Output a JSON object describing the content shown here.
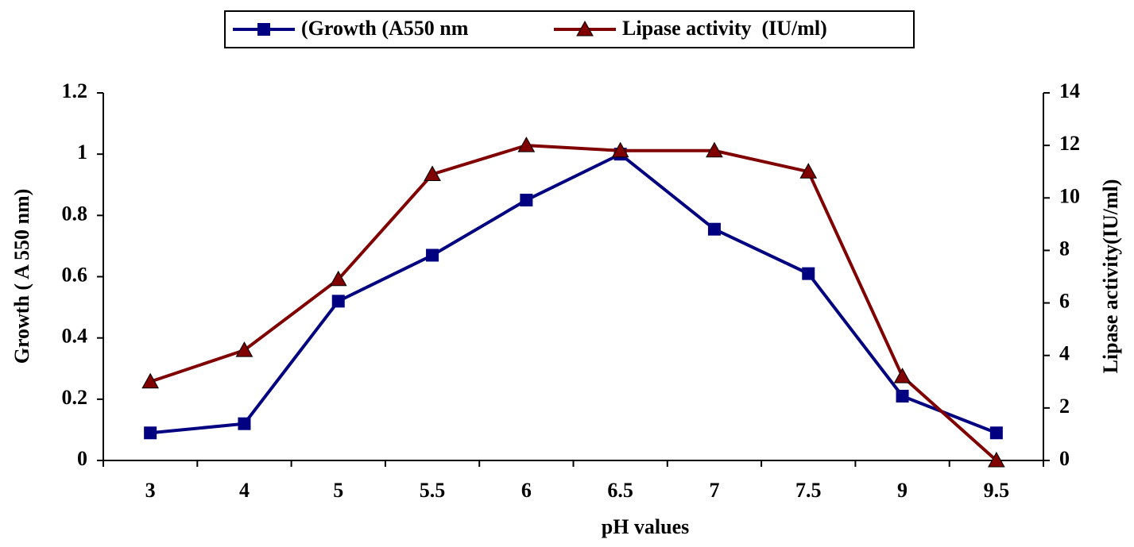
{
  "chart_data": {
    "type": "line",
    "x_label": "pH values",
    "y_label": "Growth ( A 550 nm)",
    "y2_label": "Lipase activity(IU/ml)",
    "categories": [
      "3",
      "4",
      "5",
      "5.5",
      "6",
      "6.5",
      "7",
      "7.5",
      "9",
      "9.5"
    ],
    "series": [
      {
        "name": "(Growth (A550 nm",
        "color": "#000080",
        "marker": "square",
        "values": [
          0.09,
          0.12,
          0.52,
          0.67,
          0.85,
          1.0,
          0.755,
          0.61,
          0.21,
          0.09
        ]
      },
      {
        "name": "Lipase activity  (IU/ml)",
        "color": "#800000",
        "marker": "triangle",
        "axis": "y2",
        "values": [
          3.0,
          4.2,
          6.9,
          10.9,
          12.0,
          11.8,
          11.8,
          11.0,
          3.2,
          0
        ]
      }
    ],
    "ylim": [
      0,
      1.2
    ],
    "yticks": [
      0,
      0.2,
      0.4,
      0.6,
      0.8,
      1,
      1.2
    ],
    "y2lim": [
      0,
      14
    ],
    "y2ticks": [
      0,
      2,
      4,
      6,
      8,
      10,
      12,
      14
    ],
    "grid": false
  }
}
